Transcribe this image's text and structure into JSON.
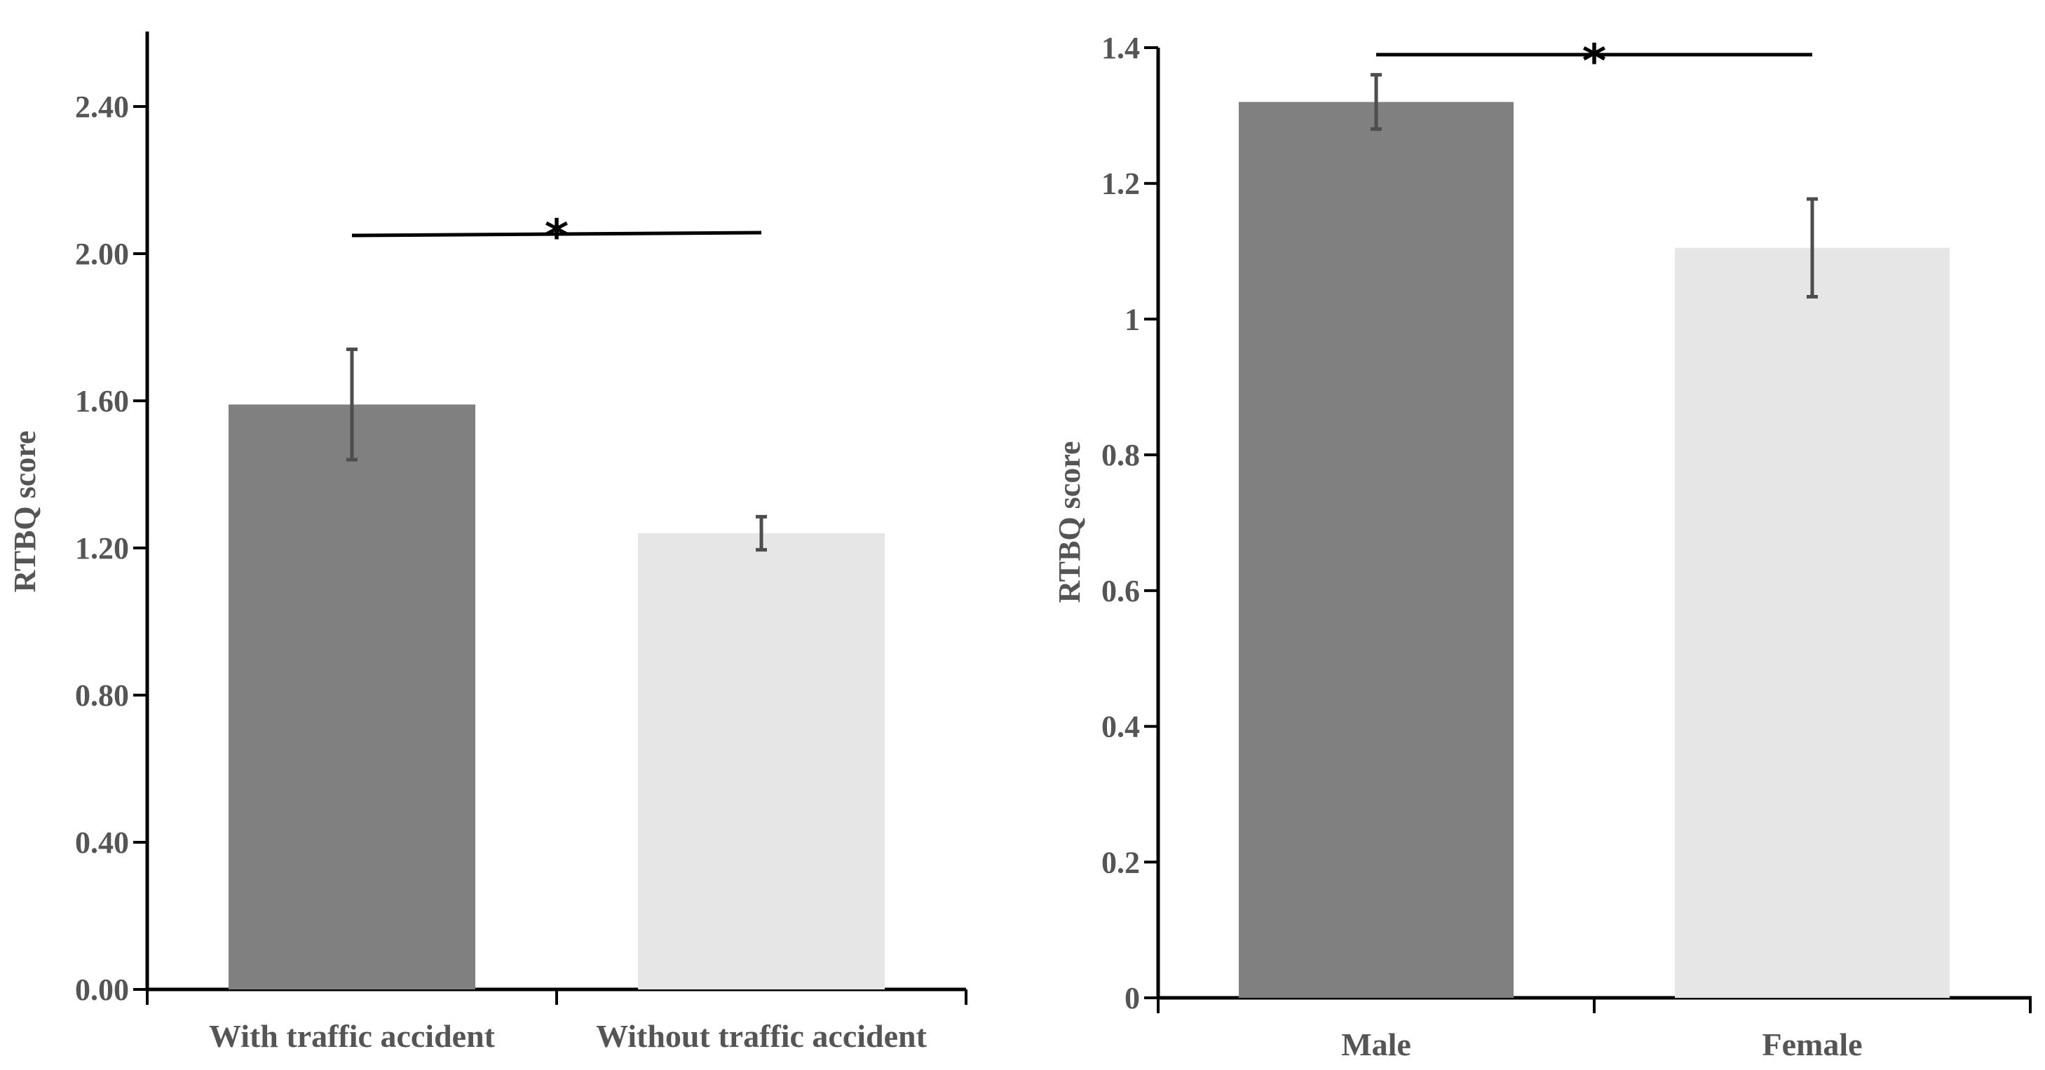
{
  "colors": {
    "bar_dark": "#808080",
    "bar_light": "#e6e6e6",
    "error_bar": "#4d4d4d",
    "axis": "#000000",
    "text": "#555555"
  },
  "chart_data": [
    {
      "type": "bar",
      "categories": [
        "With traffic accident",
        "Without traffic accident"
      ],
      "values": [
        1.59,
        1.24
      ],
      "error": [
        0.15,
        0.045
      ],
      "ylim": [
        0,
        2.6
      ],
      "yticks": [
        "0.00",
        "0.40",
        "0.80",
        "1.20",
        "1.60",
        "2.00",
        "2.40"
      ],
      "ylabel": "RTBQ score",
      "xlabel": "",
      "title": "",
      "significance": {
        "from": 0,
        "to": 1,
        "marker": "*",
        "y": 2.05
      },
      "grid": false
    },
    {
      "type": "bar",
      "categories": [
        "Male",
        "Female"
      ],
      "values": [
        1.32,
        1.105
      ],
      "error": [
        0.04,
        0.072
      ],
      "ylim": [
        0,
        1.4
      ],
      "yticks": [
        "0",
        "0.2",
        "0.4",
        "0.6",
        "0.8",
        "1",
        "1.2",
        "1.4"
      ],
      "ylabel": "RTBQ score",
      "xlabel": "",
      "title": "",
      "significance": {
        "from": 0,
        "to": 1,
        "marker": "*",
        "y": 1.385
      },
      "grid": false
    }
  ]
}
